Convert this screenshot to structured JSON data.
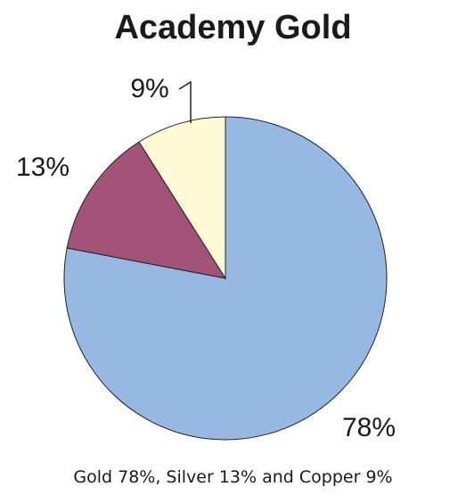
{
  "chart_data": {
    "type": "pie",
    "title": "Academy Gold",
    "caption": "Gold 78%, Silver 13% and Copper 9%",
    "slices": [
      {
        "label": "78%",
        "value": 78,
        "color": "#97b8e2"
      },
      {
        "label": "13%",
        "value": 13,
        "color": "#a25377"
      },
      {
        "label": "9%",
        "value": 9,
        "color": "#fdfbd6"
      }
    ],
    "legend": "none",
    "grid": false
  }
}
